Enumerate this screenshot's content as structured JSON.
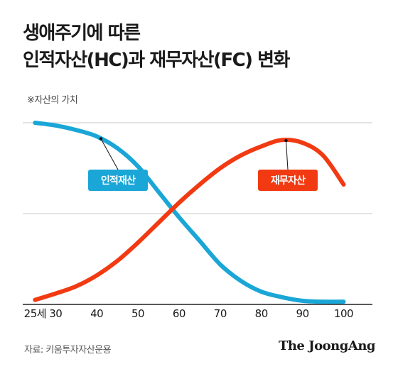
{
  "header": {
    "title_line1": "생애주기에 따른",
    "title_line2": "인적자산(HC)과 재무자산(FC) 변화",
    "subtitle": "※자산의 가치"
  },
  "footer": {
    "source": "자료: 키움투자자산운용",
    "brand": "The JoongAng"
  },
  "colors": {
    "human_capital": "#1aa6d6",
    "financial_capital": "#f23a12",
    "grid": "#c8c8c8",
    "axis": "#222222"
  },
  "chart_data": {
    "type": "line",
    "title": "",
    "xlabel": "",
    "ylabel": "",
    "x_ticks": [
      "25세",
      "30",
      "40",
      "50",
      "60",
      "70",
      "80",
      "90",
      "100"
    ],
    "x_tick_values": [
      25,
      30,
      40,
      50,
      60,
      70,
      80,
      90,
      100
    ],
    "xlim": [
      22,
      107
    ],
    "ylim": [
      0,
      100
    ],
    "y_gridlines": [
      50,
      100
    ],
    "y_tick_labels_shown": false,
    "series": [
      {
        "name": "인적재산",
        "color_key": "human_capital",
        "label_style": "pill",
        "marker_x": 41,
        "x": [
          25,
          30,
          35,
          40,
          45,
          50,
          55,
          60,
          65,
          70,
          75,
          80,
          85,
          90,
          95,
          100
        ],
        "y": [
          100,
          98.5,
          96,
          92.5,
          86,
          76,
          62,
          48,
          35,
          22,
          13,
          7,
          4,
          2,
          1.5,
          1.5
        ]
      },
      {
        "name": "재무자산",
        "color_key": "financial_capital",
        "label_style": "pill",
        "marker_x": 86,
        "x": [
          25,
          30,
          35,
          40,
          45,
          50,
          55,
          60,
          65,
          70,
          75,
          80,
          85,
          90,
          95,
          100
        ],
        "y": [
          2.5,
          6,
          10,
          16,
          24,
          34,
          45,
          56,
          66,
          75,
          82,
          87,
          90.5,
          89,
          82,
          66
        ]
      }
    ]
  }
}
